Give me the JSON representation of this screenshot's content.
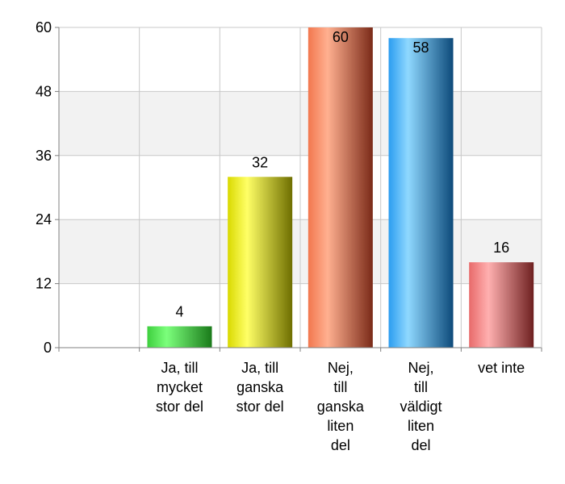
{
  "chart_data": {
    "type": "bar",
    "categories": [
      [
        "Ja, till",
        "mycket",
        "stor del"
      ],
      [
        "Ja, till",
        "ganska",
        "stor del"
      ],
      [
        "Nej,",
        "till",
        "ganska",
        "liten",
        "del"
      ],
      [
        "Nej,",
        "till",
        "väldigt",
        "liten",
        "del"
      ],
      [
        "vet inte"
      ]
    ],
    "values": [
      4,
      32,
      60,
      58,
      16
    ],
    "data_labels": [
      "4",
      "32",
      "60",
      "58",
      "16"
    ],
    "ylim": [
      0,
      60
    ],
    "yticks": [
      0,
      12,
      24,
      36,
      48,
      60
    ],
    "ytick_labels": [
      "0",
      "12",
      "24",
      "36",
      "48",
      "60"
    ],
    "grid": true,
    "bar_colors": [
      {
        "light": "#7cff7c",
        "mid": "#3ecf3e",
        "dark": "#1a7a1a"
      },
      {
        "light": "#ffff66",
        "mid": "#d9d900",
        "dark": "#6e6e00"
      },
      {
        "light": "#ffb090",
        "mid": "#f2774e",
        "dark": "#7a2a18"
      },
      {
        "light": "#8fd8ff",
        "mid": "#2b9df0",
        "dark": "#0d4a7a"
      },
      {
        "light": "#ffb0b0",
        "mid": "#e86a6a",
        "dark": "#6e2020"
      }
    ],
    "band_color": "#f2f2f2",
    "grid_color": "#c8c8c8",
    "axis_color": "#808080"
  }
}
